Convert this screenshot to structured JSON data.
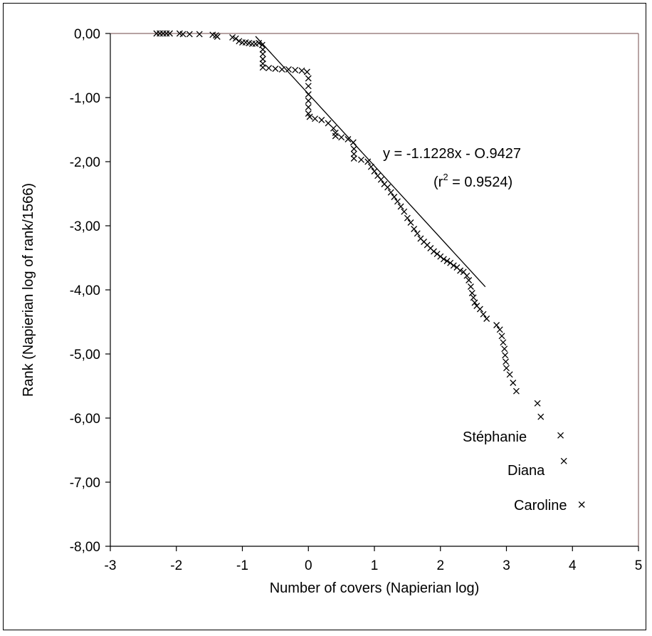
{
  "chart_data": {
    "type": "scatter",
    "xlabel": "Number of covers (Napierian log)",
    "ylabel": "Rank (Napierian log of rank/1566)",
    "xlim": [
      -3,
      5
    ],
    "ylim": [
      -8,
      0
    ],
    "x_ticks": [
      "-3",
      "-2",
      "-1",
      "0",
      "1",
      "2",
      "3",
      "4",
      "5"
    ],
    "y_ticks": [
      "0,00",
      "-1,00",
      "-2,00",
      "-3,00",
      "-4,00",
      "-5,00",
      "-6,00",
      "-7,00",
      "-8,00"
    ],
    "grid": false,
    "marker": "x",
    "marker_color": "#000000",
    "series": [
      {
        "points": [
          [
            -2.3,
            0.0
          ],
          [
            -2.25,
            0.0
          ],
          [
            -2.2,
            0.0
          ],
          [
            -2.15,
            0.0
          ],
          [
            -2.1,
            0.0
          ],
          [
            -1.95,
            0.0
          ],
          [
            -1.9,
            -0.01
          ],
          [
            -1.8,
            -0.01
          ],
          [
            -1.65,
            -0.01
          ],
          [
            -1.45,
            -0.02
          ],
          [
            -1.4,
            -0.03
          ],
          [
            -1.38,
            -0.05
          ],
          [
            -1.15,
            -0.06
          ],
          [
            -1.1,
            -0.08
          ],
          [
            -1.05,
            -0.12
          ],
          [
            -1.0,
            -0.14
          ],
          [
            -0.95,
            -0.14
          ],
          [
            -0.9,
            -0.15
          ],
          [
            -0.85,
            -0.16
          ],
          [
            -0.8,
            -0.16
          ],
          [
            -0.75,
            -0.15
          ],
          [
            -0.7,
            -0.18
          ],
          [
            -0.69,
            -0.25
          ],
          [
            -0.69,
            -0.32
          ],
          [
            -0.69,
            -0.4
          ],
          [
            -0.69,
            -0.47
          ],
          [
            -0.69,
            -0.53
          ],
          [
            -0.6,
            -0.54
          ],
          [
            -0.5,
            -0.55
          ],
          [
            -0.4,
            -0.56
          ],
          [
            -0.3,
            -0.56
          ],
          [
            -0.2,
            -0.57
          ],
          [
            -0.1,
            -0.58
          ],
          [
            -0.02,
            -0.6
          ],
          [
            0.0,
            -0.7
          ],
          [
            0.0,
            -0.82
          ],
          [
            0.0,
            -0.95
          ],
          [
            0.0,
            -1.05
          ],
          [
            0.0,
            -1.15
          ],
          [
            0.0,
            -1.25
          ],
          [
            0.02,
            -1.3
          ],
          [
            0.1,
            -1.33
          ],
          [
            0.2,
            -1.35
          ],
          [
            0.3,
            -1.4
          ],
          [
            0.38,
            -1.48
          ],
          [
            0.41,
            -1.55
          ],
          [
            0.41,
            -1.6
          ],
          [
            0.5,
            -1.62
          ],
          [
            0.6,
            -1.65
          ],
          [
            0.68,
            -1.7
          ],
          [
            0.69,
            -1.8
          ],
          [
            0.69,
            -1.88
          ],
          [
            0.69,
            -1.95
          ],
          [
            0.8,
            -1.97
          ],
          [
            0.9,
            -2.0
          ],
          [
            0.95,
            -2.08
          ],
          [
            1.0,
            -2.15
          ],
          [
            1.05,
            -2.22
          ],
          [
            1.1,
            -2.28
          ],
          [
            1.15,
            -2.35
          ],
          [
            1.2,
            -2.4
          ],
          [
            1.25,
            -2.48
          ],
          [
            1.3,
            -2.55
          ],
          [
            1.35,
            -2.62
          ],
          [
            1.4,
            -2.7
          ],
          [
            1.45,
            -2.78
          ],
          [
            1.5,
            -2.88
          ],
          [
            1.55,
            -2.95
          ],
          [
            1.6,
            -3.05
          ],
          [
            1.65,
            -3.12
          ],
          [
            1.7,
            -3.2
          ],
          [
            1.75,
            -3.25
          ],
          [
            1.8,
            -3.3
          ],
          [
            1.85,
            -3.35
          ],
          [
            1.9,
            -3.4
          ],
          [
            1.95,
            -3.44
          ],
          [
            2.0,
            -3.48
          ],
          [
            2.05,
            -3.52
          ],
          [
            2.1,
            -3.55
          ],
          [
            2.15,
            -3.58
          ],
          [
            2.2,
            -3.62
          ],
          [
            2.25,
            -3.65
          ],
          [
            2.3,
            -3.7
          ],
          [
            2.35,
            -3.72
          ],
          [
            2.4,
            -3.78
          ],
          [
            2.43,
            -3.85
          ],
          [
            2.46,
            -3.95
          ],
          [
            2.48,
            -4.05
          ],
          [
            2.5,
            -4.12
          ],
          [
            2.52,
            -4.2
          ],
          [
            2.55,
            -4.25
          ],
          [
            2.6,
            -4.3
          ],
          [
            2.65,
            -4.38
          ],
          [
            2.7,
            -4.45
          ],
          [
            2.85,
            -4.55
          ],
          [
            2.9,
            -4.62
          ],
          [
            2.93,
            -4.72
          ],
          [
            2.95,
            -4.82
          ],
          [
            2.97,
            -4.92
          ],
          [
            2.98,
            -5.02
          ],
          [
            2.99,
            -5.12
          ],
          [
            3.0,
            -5.22
          ],
          [
            3.05,
            -5.32
          ],
          [
            3.1,
            -5.45
          ],
          [
            3.15,
            -5.58
          ],
          [
            3.47,
            -5.77
          ],
          [
            3.52,
            -5.98
          ],
          [
            3.82,
            -6.27
          ],
          [
            3.87,
            -6.67
          ],
          [
            4.14,
            -7.35
          ]
        ]
      }
    ],
    "trendline": {
      "x_range": [
        -0.8,
        2.68
      ],
      "slope": -1.1228,
      "intercept": -0.9427
    },
    "annotations": {
      "equation": "y = -1.1228x - O.9427",
      "r2_open": "(r",
      "r2_sup": "2",
      "r2_close": " = 0.9524)",
      "point_labels": [
        "Stéphanie",
        "Diana",
        "Caroline"
      ]
    }
  }
}
